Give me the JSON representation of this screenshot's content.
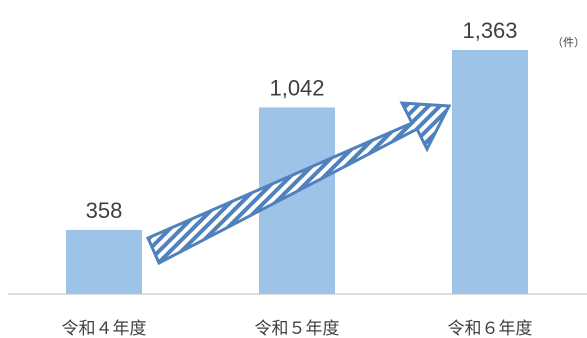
{
  "chart_data": {
    "type": "bar",
    "categories": [
      "令和４年度",
      "令和５年度",
      "令和６年度"
    ],
    "values": [
      358,
      1042,
      1363
    ],
    "value_labels": [
      "358",
      "1,042",
      "1,363"
    ],
    "unit": "（件）",
    "ylim": [
      0,
      1500
    ],
    "grid": false,
    "legend": "none",
    "trend_arrow": true,
    "colors": {
      "bar": "#9dc3e6",
      "arrow_stroke": "#4f81bd",
      "arrow_hatch": "#4f81bd",
      "axis": "#bfbfbf",
      "text": "#404040"
    }
  }
}
